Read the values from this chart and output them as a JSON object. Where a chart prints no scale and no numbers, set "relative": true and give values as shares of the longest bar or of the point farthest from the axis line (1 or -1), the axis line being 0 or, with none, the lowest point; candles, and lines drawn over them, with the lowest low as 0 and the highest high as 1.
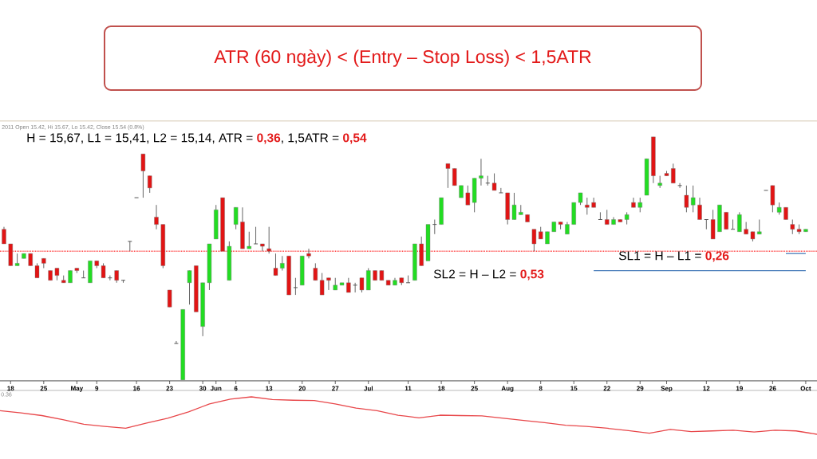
{
  "chart_data": [
    {
      "type": "candlestick",
      "title": "ATR (60 ngày) < (Entry – Stop Loss) < 1,5ATR",
      "relative": true,
      "tick_labels": "x",
      "categories": [
        null,
        "18",
        null,
        null,
        null,
        null,
        "25",
        null,
        null,
        null,
        null,
        "May",
        null,
        null,
        "9",
        null,
        null,
        null,
        null,
        null,
        "16",
        null,
        null,
        null,
        null,
        "23",
        null,
        null,
        null,
        null,
        "30",
        null,
        "Jun",
        null,
        null,
        "6",
        null,
        null,
        null,
        null,
        "13",
        null,
        null,
        null,
        null,
        "20",
        null,
        null,
        null,
        null,
        "27",
        null,
        null,
        null,
        null,
        "Jul",
        null,
        null,
        null,
        null,
        null,
        "11",
        null,
        null,
        null,
        null,
        "18",
        null,
        null,
        null,
        null,
        "25",
        null,
        null,
        null,
        null,
        "Aug",
        null,
        null,
        null,
        null,
        "8",
        null,
        null,
        null,
        null,
        "15",
        null,
        null,
        null,
        null,
        "22",
        null,
        null,
        null,
        null,
        "29",
        null,
        null,
        null,
        "Sep",
        null,
        null,
        null,
        null,
        null,
        "12",
        null,
        null,
        null,
        null,
        "19",
        null,
        null,
        null,
        null,
        "26",
        null,
        null,
        null,
        null,
        "Oct"
      ],
      "ohlc": [
        [
          0.62,
          0.63,
          0.56,
          0.56
        ],
        [
          0.56,
          0.56,
          0.47,
          0.47
        ],
        [
          0.47,
          0.52,
          0.47,
          0.48
        ],
        [
          0.5,
          0.52,
          0.5,
          0.52
        ],
        [
          0.52,
          0.52,
          0.47,
          0.47
        ],
        [
          0.47,
          0.48,
          0.42,
          0.42
        ],
        [
          0.5,
          0.5,
          0.46,
          0.48
        ],
        [
          0.45,
          0.45,
          0.41,
          0.41
        ],
        [
          0.46,
          0.46,
          0.41,
          0.43
        ],
        [
          0.41,
          0.43,
          0.4,
          0.4
        ],
        [
          0.4,
          0.45,
          0.4,
          0.45
        ],
        [
          0.46,
          0.46,
          0.44,
          0.45
        ],
        [
          0.42,
          0.45,
          0.42,
          0.42
        ],
        [
          0.4,
          0.49,
          0.4,
          0.49
        ],
        [
          0.49,
          0.49,
          0.46,
          0.47
        ],
        [
          0.47,
          0.48,
          0.42,
          0.42
        ],
        [
          0.42,
          0.43,
          0.41,
          0.42
        ],
        [
          0.45,
          0.45,
          0.4,
          0.41
        ],
        [
          0.41,
          0.41,
          0.4,
          0.41
        ],
        [
          0.57,
          0.57,
          0.53,
          0.57
        ],
        [
          0.75,
          0.75,
          0.75,
          0.75
        ],
        [
          0.93,
          0.93,
          0.75,
          0.86
        ],
        [
          0.84,
          0.84,
          0.77,
          0.79
        ],
        [
          0.67,
          0.72,
          0.62,
          0.64
        ],
        [
          0.64,
          0.64,
          0.46,
          0.47
        ],
        [
          0.37,
          0.37,
          0.3,
          0.3
        ],
        [
          0.15,
          0.16,
          0.15,
          0.15
        ],
        [
          0,
          0.29,
          0,
          0.29
        ],
        [
          0.4,
          0.45,
          0.31,
          0.45
        ],
        [
          0.47,
          0.47,
          0.28,
          0.28
        ],
        [
          0.22,
          0.4,
          0.18,
          0.4
        ],
        [
          0.4,
          0.56,
          0.37,
          0.56
        ],
        [
          0.58,
          0.72,
          0.58,
          0.7
        ],
        [
          0.75,
          0.75,
          0.53,
          0.53
        ],
        [
          0.41,
          0.57,
          0.41,
          0.55
        ],
        [
          0.64,
          0.71,
          0.62,
          0.71
        ],
        [
          0.65,
          0.71,
          0.54,
          0.54
        ],
        [
          0.54,
          0.61,
          0.54,
          0.55
        ],
        [
          0.56,
          0.63,
          0.56,
          0.56
        ],
        [
          0.56,
          0.56,
          0.53,
          0.55
        ],
        [
          0.54,
          0.63,
          0.52,
          0.53
        ],
        [
          0.46,
          0.52,
          0.43,
          0.43
        ],
        [
          0.46,
          0.51,
          0.45,
          0.48
        ],
        [
          0.51,
          0.51,
          0.35,
          0.35
        ],
        [
          0.38,
          0.42,
          0.35,
          0.38
        ],
        [
          0.39,
          0.51,
          0.39,
          0.51
        ],
        [
          0.52,
          0.54,
          0.5,
          0.51
        ],
        [
          0.46,
          0.48,
          0.41,
          0.41
        ],
        [
          0.41,
          0.44,
          0.35,
          0.35
        ],
        [
          0.42,
          0.42,
          0.37,
          0.41
        ],
        [
          0.37,
          0.42,
          0.37,
          0.39
        ],
        [
          0.39,
          0.4,
          0.39,
          0.4
        ],
        [
          0.4,
          0.42,
          0.36,
          0.36
        ],
        [
          0.39,
          0.4,
          0.36,
          0.39
        ],
        [
          0.42,
          0.42,
          0.36,
          0.37
        ],
        [
          0.37,
          0.46,
          0.37,
          0.45
        ],
        [
          0.45,
          0.45,
          0.41,
          0.41
        ],
        [
          0.45,
          0.45,
          0.41,
          0.41
        ],
        [
          0.41,
          0.41,
          0.39,
          0.39
        ],
        [
          0.39,
          0.42,
          0.39,
          0.41
        ],
        [
          0.42,
          0.42,
          0.39,
          0.4
        ],
        [
          0.4,
          0.43,
          0.4,
          0.4
        ],
        [
          0.41,
          0.56,
          0.41,
          0.56
        ],
        [
          0.56,
          0.59,
          0.47,
          0.47
        ],
        [
          0.49,
          0.64,
          0.49,
          0.64
        ],
        [
          0.64,
          0.66,
          0.6,
          0.64
        ],
        [
          0.64,
          0.75,
          0.64,
          0.75
        ],
        [
          0.89,
          0.89,
          0.79,
          0.87
        ],
        [
          0.87,
          0.87,
          0.8,
          0.8
        ],
        [
          0.75,
          0.8,
          0.75,
          0.8
        ],
        [
          0.77,
          0.8,
          0.72,
          0.72
        ],
        [
          0.73,
          0.83,
          0.69,
          0.83
        ],
        [
          0.83,
          0.91,
          0.8,
          0.84
        ],
        [
          0.81,
          0.84,
          0.8,
          0.81
        ],
        [
          0.81,
          0.85,
          0.78,
          0.78
        ],
        [
          0.77,
          0.79,
          0.77,
          0.77
        ],
        [
          0.77,
          0.77,
          0.64,
          0.66
        ],
        [
          0.66,
          0.77,
          0.66,
          0.72
        ],
        [
          0.68,
          0.72,
          0.68,
          0.69
        ],
        [
          0.68,
          0.68,
          0.65,
          0.65
        ],
        [
          0.62,
          0.62,
          0.53,
          0.56
        ],
        [
          0.61,
          0.63,
          0.58,
          0.58
        ],
        [
          0.56,
          0.61,
          0.56,
          0.61
        ],
        [
          0.61,
          0.65,
          0.61,
          0.65
        ],
        [
          0.65,
          0.65,
          0.62,
          0.64
        ],
        [
          0.6,
          0.65,
          0.6,
          0.64
        ],
        [
          0.64,
          0.73,
          0.64,
          0.73
        ],
        [
          0.73,
          0.77,
          0.72,
          0.77
        ],
        [
          0.72,
          0.75,
          0.68,
          0.71
        ],
        [
          0.73,
          0.75,
          0.71,
          0.71
        ],
        [
          0.66,
          0.69,
          0.66,
          0.66
        ],
        [
          0.66,
          0.7,
          0.64,
          0.64
        ],
        [
          0.64,
          0.67,
          0.64,
          0.66
        ],
        [
          0.66,
          0.66,
          0.65,
          0.65
        ],
        [
          0.66,
          0.69,
          0.64,
          0.68
        ],
        [
          0.73,
          0.75,
          0.71,
          0.71
        ],
        [
          0.71,
          0.75,
          0.69,
          0.73
        ],
        [
          0.76,
          0.91,
          0.76,
          0.91
        ],
        [
          1.0,
          1.0,
          0.81,
          0.84
        ],
        [
          0.8,
          0.84,
          0.79,
          0.81
        ],
        [
          0.85,
          0.86,
          0.84,
          0.84
        ],
        [
          0.87,
          0.89,
          0.81,
          0.81
        ],
        [
          0.8,
          0.81,
          0.79,
          0.8
        ],
        [
          0.76,
          0.8,
          0.69,
          0.71
        ],
        [
          0.72,
          0.8,
          0.69,
          0.75
        ],
        [
          0.72,
          0.75,
          0.66,
          0.66
        ],
        [
          0.66,
          0.66,
          0.62,
          0.66
        ],
        [
          0.66,
          0.7,
          0.58,
          0.58
        ],
        [
          0.61,
          0.72,
          0.61,
          0.72
        ],
        [
          0.69,
          0.69,
          0.62,
          0.62
        ],
        [
          0.62,
          0.66,
          0.62,
          0.62
        ],
        [
          0.61,
          0.69,
          0.61,
          0.68
        ],
        [
          0.62,
          0.65,
          0.6,
          0.6
        ],
        [
          0.61,
          0.61,
          0.57,
          0.58
        ],
        [
          0.6,
          0.66,
          0.6,
          0.61
        ],
        [
          0.78,
          0.78,
          0.78,
          0.78
        ],
        [
          0.8,
          0.8,
          0.69,
          0.72
        ],
        [
          0.69,
          0.73,
          0.68,
          0.71
        ],
        [
          0.71,
          0.71,
          0.66,
          0.66
        ],
        [
          0.64,
          0.66,
          0.6,
          0.62
        ],
        [
          0.62,
          0.64,
          0.6,
          0.61
        ],
        [
          0.61,
          0.62,
          0.61,
          0.62
        ]
      ],
      "series": [
        {
          "type": "line",
          "color": "#4a7ebb",
          "values": [
            null,
            null,
            null,
            null,
            null,
            null,
            null,
            null,
            null,
            null,
            null,
            null,
            null,
            null,
            null,
            null,
            null,
            null,
            null,
            null,
            null,
            null,
            null,
            null,
            null,
            null,
            null,
            null,
            null,
            null,
            null,
            null,
            null,
            null,
            null,
            null,
            null,
            null,
            null,
            null,
            null,
            null,
            null,
            null,
            null,
            null,
            null,
            null,
            null,
            null,
            null,
            null,
            null,
            null,
            null,
            null,
            null,
            null,
            null,
            null,
            null,
            null,
            null,
            null,
            null,
            null,
            null,
            null,
            null,
            null,
            null,
            null,
            null,
            null,
            null,
            null,
            null,
            null,
            null,
            null,
            null,
            null,
            null,
            null,
            null,
            null,
            null,
            null,
            null,
            0.45,
            0.45,
            0.45,
            0.45,
            0.45,
            0.45,
            0.45,
            0.45,
            0.45,
            0.45,
            0.45,
            0.45,
            0.45,
            0.45,
            0.45,
            0.45,
            0.45,
            0.45,
            0.45,
            0.45,
            0.45,
            0.45,
            0.45,
            0.45,
            0.45,
            0.45,
            0.45,
            0.45,
            0.45,
            0.45,
            0.45,
            0.45,
            0.45
          ]
        },
        {
          "type": "line",
          "color": "#4a7ebb",
          "values": [
            null,
            null,
            null,
            null,
            null,
            null,
            null,
            null,
            null,
            null,
            null,
            null,
            null,
            null,
            null,
            null,
            null,
            null,
            null,
            null,
            null,
            null,
            null,
            null,
            null,
            null,
            null,
            null,
            null,
            null,
            null,
            null,
            null,
            null,
            null,
            null,
            null,
            null,
            null,
            null,
            null,
            null,
            null,
            null,
            null,
            null,
            null,
            null,
            null,
            null,
            null,
            null,
            null,
            null,
            null,
            null,
            null,
            null,
            null,
            null,
            null,
            null,
            null,
            null,
            null,
            null,
            null,
            null,
            null,
            null,
            null,
            null,
            null,
            null,
            null,
            null,
            null,
            null,
            null,
            null,
            null,
            null,
            null,
            null,
            null,
            null,
            null,
            null,
            null,
            null,
            null,
            null,
            null,
            null,
            null,
            null,
            null,
            null,
            null,
            null,
            null,
            null,
            null,
            null,
            null,
            null,
            null,
            null,
            null,
            null,
            null,
            null,
            null,
            null,
            null,
            null,
            null,
            null,
            0.52,
            0.52,
            0.52,
            0.52
          ]
        }
      ],
      "ref_lines": [
        {
          "axis": "y",
          "value": 0.53,
          "color": "#ff0000",
          "line_style": "dotted"
        }
      ],
      "annotations": [
        "2011 Open 15.42, Hi 15.67, Lo 15.42, Close 15.54 (0.8%)",
        "H = 15,67, L1 = 15,41, L2 = 15,14, ATR = **0,36**, 1,5ATR = **0,54**",
        "SL2 = H – L2 = **0,53**",
        "SL1 = H – L1 = **0,26**"
      ]
    },
    {
      "type": "line",
      "relative": true,
      "tick_labels": false,
      "color": "#e8474a",
      "categories": [
        null,
        null,
        null,
        null,
        null,
        null,
        null,
        null,
        null,
        null,
        null,
        null,
        null,
        null,
        null,
        null,
        null,
        null,
        null,
        null,
        null,
        null,
        null,
        null,
        null,
        null,
        null,
        null,
        null,
        null,
        null,
        null,
        null,
        null,
        null,
        null,
        null,
        null,
        null,
        null
      ],
      "values": [
        0.63,
        0.57,
        0.5,
        0.39,
        0.27,
        0.21,
        0.16,
        0.3,
        0.43,
        0.6,
        0.81,
        0.94,
        1.0,
        0.93,
        0.91,
        0.9,
        0.81,
        0.7,
        0.63,
        0.51,
        0.44,
        0.51,
        0.5,
        0.49,
        0.43,
        0.37,
        0.31,
        0.24,
        0.21,
        0.16,
        0.1,
        0.03,
        0.13,
        0.07,
        0.09,
        0.11,
        0.06,
        0.11,
        0.09,
        0
      ],
      "annotations": [
        "0.36"
      ]
    }
  ]
}
